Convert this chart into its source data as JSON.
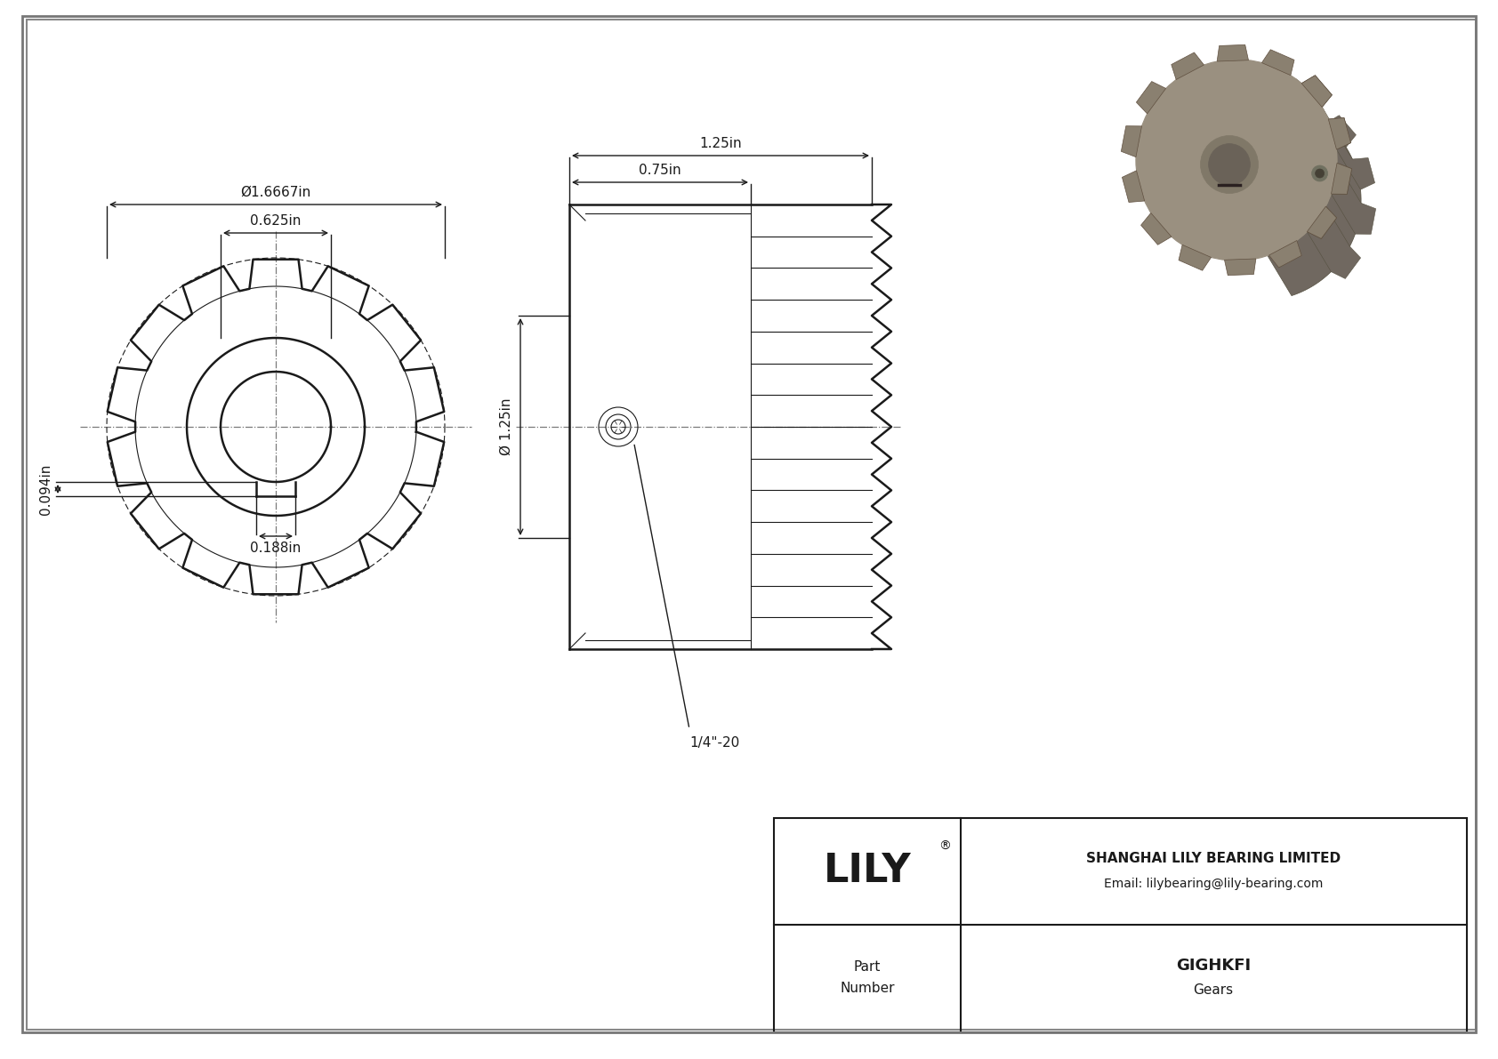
{
  "bg_outer": "#d0d0d0",
  "bg_inner": "#ffffff",
  "line_color": "#1a1a1a",
  "dim_color": "#1a1a1a",
  "cl_color": "#7a7a7a",
  "title_company": "SHANGHAI LILY BEARING LIMITED",
  "title_email": "Email: lilybearing@lily-bearing.com",
  "part_number": "GIGHKFI",
  "part_type": "Gears",
  "dim_od": "Ø1.6667in",
  "dim_bore_front": "0.625in",
  "dim_width_total": "1.25in",
  "dim_width_inner": "0.75in",
  "dim_bore_side": "Ø 1.25in",
  "dim_keyway_depth": "0.094in",
  "dim_keyway_width": "0.188in",
  "dim_setscrew": "1/4\"-20",
  "num_teeth": 14,
  "photo_gear_color": "#9a9080",
  "photo_tooth_color": "#8a8070",
  "photo_shadow_color": "#706860",
  "photo_bore_color": "#6a6258",
  "photo_highlight": "#b0a898"
}
